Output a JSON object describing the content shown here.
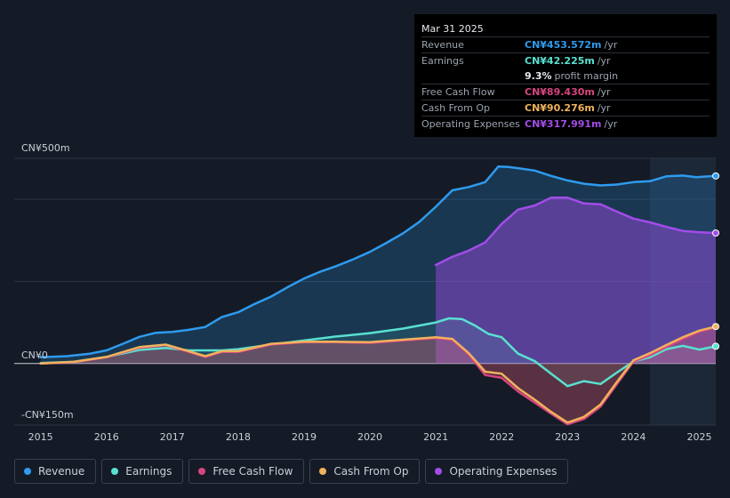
{
  "tooltip": {
    "date": "Mar 31 2025",
    "rows": [
      {
        "label": "Revenue",
        "value": "CN¥453.572m",
        "unit": "/yr",
        "color": "#2e9bef"
      },
      {
        "label": "Earnings",
        "value": "CN¥42.225m",
        "unit": "/yr",
        "color": "#59e0d0"
      },
      {
        "label": "",
        "value": "9.3%",
        "unit": "profit margin",
        "color": "#e6e9ee"
      },
      {
        "label": "Free Cash Flow",
        "value": "CN¥89.430m",
        "unit": "/yr",
        "color": "#d6457f"
      },
      {
        "label": "Cash From Op",
        "value": "CN¥90.276m",
        "unit": "/yr",
        "color": "#f0b25c"
      },
      {
        "label": "Operating Expenses",
        "value": "CN¥317.991m",
        "unit": "/yr",
        "color": "#a24ce8"
      }
    ]
  },
  "colors": {
    "background": "#151b26",
    "revenue": "#2e9bef",
    "earnings": "#59e0d0",
    "fcf": "#d6457f",
    "cfo": "#f0b25c",
    "opex": "#a24ce8"
  },
  "chart_data": {
    "type": "line",
    "y_tick_labels": [
      "CN¥500m",
      "CN¥0",
      "-CN¥150m"
    ],
    "ylim": [
      -150,
      500
    ],
    "x_tick_labels": [
      "2015",
      "2016",
      "2017",
      "2018",
      "2019",
      "2020",
      "2021",
      "2022",
      "2023",
      "2024",
      "2025"
    ],
    "x_ticks": [
      2015,
      2016,
      2017,
      2018,
      2019,
      2020,
      2021,
      2022,
      2023,
      2024,
      2025
    ],
    "xlim": [
      2014.6,
      2025.25
    ],
    "legend_position": "bottom",
    "grid": true,
    "series": [
      {
        "name": "Revenue",
        "key": "revenue",
        "points": [
          [
            2015.0,
            15
          ],
          [
            2015.4,
            18
          ],
          [
            2015.75,
            24
          ],
          [
            2016.0,
            32
          ],
          [
            2016.25,
            48
          ],
          [
            2016.5,
            65
          ],
          [
            2016.75,
            75
          ],
          [
            2017.0,
            77
          ],
          [
            2017.25,
            82
          ],
          [
            2017.5,
            89
          ],
          [
            2017.75,
            113
          ],
          [
            2018.0,
            125
          ],
          [
            2018.25,
            145
          ],
          [
            2018.5,
            163
          ],
          [
            2018.75,
            186
          ],
          [
            2019.0,
            207
          ],
          [
            2019.25,
            224
          ],
          [
            2019.5,
            238
          ],
          [
            2019.75,
            254
          ],
          [
            2020.0,
            272
          ],
          [
            2020.25,
            294
          ],
          [
            2020.5,
            317
          ],
          [
            2020.75,
            345
          ],
          [
            2021.0,
            382
          ],
          [
            2021.25,
            422
          ],
          [
            2021.5,
            430
          ],
          [
            2021.75,
            442
          ],
          [
            2021.95,
            480
          ],
          [
            2022.1,
            479
          ],
          [
            2022.25,
            476
          ],
          [
            2022.5,
            470
          ],
          [
            2022.75,
            457
          ],
          [
            2023.0,
            446
          ],
          [
            2023.25,
            438
          ],
          [
            2023.5,
            434
          ],
          [
            2023.75,
            436
          ],
          [
            2024.0,
            442
          ],
          [
            2024.25,
            444
          ],
          [
            2024.5,
            456
          ],
          [
            2024.75,
            458
          ],
          [
            2024.95,
            454
          ],
          [
            2025.25,
            457
          ]
        ]
      },
      {
        "name": "Earnings",
        "key": "earnings",
        "points": [
          [
            2015.0,
            1
          ],
          [
            2015.5,
            4
          ],
          [
            2016.0,
            16
          ],
          [
            2016.5,
            33
          ],
          [
            2016.9,
            38
          ],
          [
            2017.25,
            32
          ],
          [
            2017.75,
            32
          ],
          [
            2018.0,
            35
          ],
          [
            2018.5,
            46
          ],
          [
            2019.0,
            56
          ],
          [
            2019.5,
            66
          ],
          [
            2020.0,
            74
          ],
          [
            2020.5,
            85
          ],
          [
            2021.0,
            100
          ],
          [
            2021.2,
            110
          ],
          [
            2021.4,
            108
          ],
          [
            2021.6,
            92
          ],
          [
            2021.8,
            72
          ],
          [
            2022.0,
            64
          ],
          [
            2022.25,
            24
          ],
          [
            2022.5,
            6
          ],
          [
            2022.75,
            -25
          ],
          [
            2023.0,
            -55
          ],
          [
            2023.25,
            -43
          ],
          [
            2023.5,
            -50
          ],
          [
            2023.75,
            -22
          ],
          [
            2024.0,
            5
          ],
          [
            2024.25,
            15
          ],
          [
            2024.5,
            35
          ],
          [
            2024.75,
            43
          ],
          [
            2025.0,
            34
          ],
          [
            2025.25,
            42
          ]
        ]
      },
      {
        "name": "Free Cash Flow",
        "key": "fcf",
        "points": [
          [
            2015.0,
            0
          ],
          [
            2015.5,
            3
          ],
          [
            2016.0,
            15
          ],
          [
            2016.5,
            38
          ],
          [
            2016.9,
            45
          ],
          [
            2017.25,
            28
          ],
          [
            2017.5,
            16
          ],
          [
            2017.75,
            28
          ],
          [
            2018.0,
            28
          ],
          [
            2018.5,
            46
          ],
          [
            2019.0,
            52
          ],
          [
            2019.5,
            52
          ],
          [
            2020.0,
            50
          ],
          [
            2020.5,
            56
          ],
          [
            2021.0,
            62
          ],
          [
            2021.25,
            58
          ],
          [
            2021.5,
            22
          ],
          [
            2021.75,
            -28
          ],
          [
            2022.0,
            -35
          ],
          [
            2022.25,
            -68
          ],
          [
            2022.5,
            -95
          ],
          [
            2022.75,
            -122
          ],
          [
            2023.0,
            -148
          ],
          [
            2023.25,
            -135
          ],
          [
            2023.5,
            -105
          ],
          [
            2023.75,
            -50
          ],
          [
            2024.0,
            5
          ],
          [
            2024.25,
            20
          ],
          [
            2024.5,
            40
          ],
          [
            2024.75,
            60
          ],
          [
            2025.0,
            78
          ],
          [
            2025.25,
            88
          ]
        ]
      },
      {
        "name": "Cash From Op",
        "key": "cfo",
        "points": [
          [
            2015.0,
            0
          ],
          [
            2015.5,
            4
          ],
          [
            2016.0,
            16
          ],
          [
            2016.5,
            40
          ],
          [
            2016.9,
            46
          ],
          [
            2017.25,
            30
          ],
          [
            2017.5,
            18
          ],
          [
            2017.75,
            30
          ],
          [
            2018.0,
            30
          ],
          [
            2018.5,
            48
          ],
          [
            2019.0,
            53
          ],
          [
            2019.5,
            53
          ],
          [
            2020.0,
            52
          ],
          [
            2020.5,
            58
          ],
          [
            2021.0,
            64
          ],
          [
            2021.25,
            60
          ],
          [
            2021.5,
            25
          ],
          [
            2021.75,
            -20
          ],
          [
            2022.0,
            -25
          ],
          [
            2022.25,
            -60
          ],
          [
            2022.5,
            -88
          ],
          [
            2022.75,
            -118
          ],
          [
            2023.0,
            -144
          ],
          [
            2023.25,
            -130
          ],
          [
            2023.5,
            -100
          ],
          [
            2023.75,
            -45
          ],
          [
            2024.0,
            8
          ],
          [
            2024.25,
            25
          ],
          [
            2024.5,
            45
          ],
          [
            2024.75,
            64
          ],
          [
            2025.0,
            80
          ],
          [
            2025.25,
            90
          ]
        ]
      },
      {
        "name": "Operating Expenses",
        "key": "opex",
        "points": [
          [
            2021.0,
            240
          ],
          [
            2021.25,
            260
          ],
          [
            2021.5,
            275
          ],
          [
            2021.75,
            295
          ],
          [
            2022.0,
            340
          ],
          [
            2022.25,
            375
          ],
          [
            2022.5,
            385
          ],
          [
            2022.75,
            404
          ],
          [
            2023.0,
            404
          ],
          [
            2023.25,
            390
          ],
          [
            2023.5,
            388
          ],
          [
            2023.75,
            370
          ],
          [
            2024.0,
            353
          ],
          [
            2024.25,
            344
          ],
          [
            2024.5,
            333
          ],
          [
            2024.75,
            323
          ],
          [
            2025.0,
            320
          ],
          [
            2025.25,
            318
          ]
        ]
      }
    ]
  },
  "legend": [
    {
      "label": "Revenue",
      "key": "revenue"
    },
    {
      "label": "Earnings",
      "key": "earnings"
    },
    {
      "label": "Free Cash Flow",
      "key": "fcf"
    },
    {
      "label": "Cash From Op",
      "key": "cfo"
    },
    {
      "label": "Operating Expenses",
      "key": "opex"
    }
  ]
}
